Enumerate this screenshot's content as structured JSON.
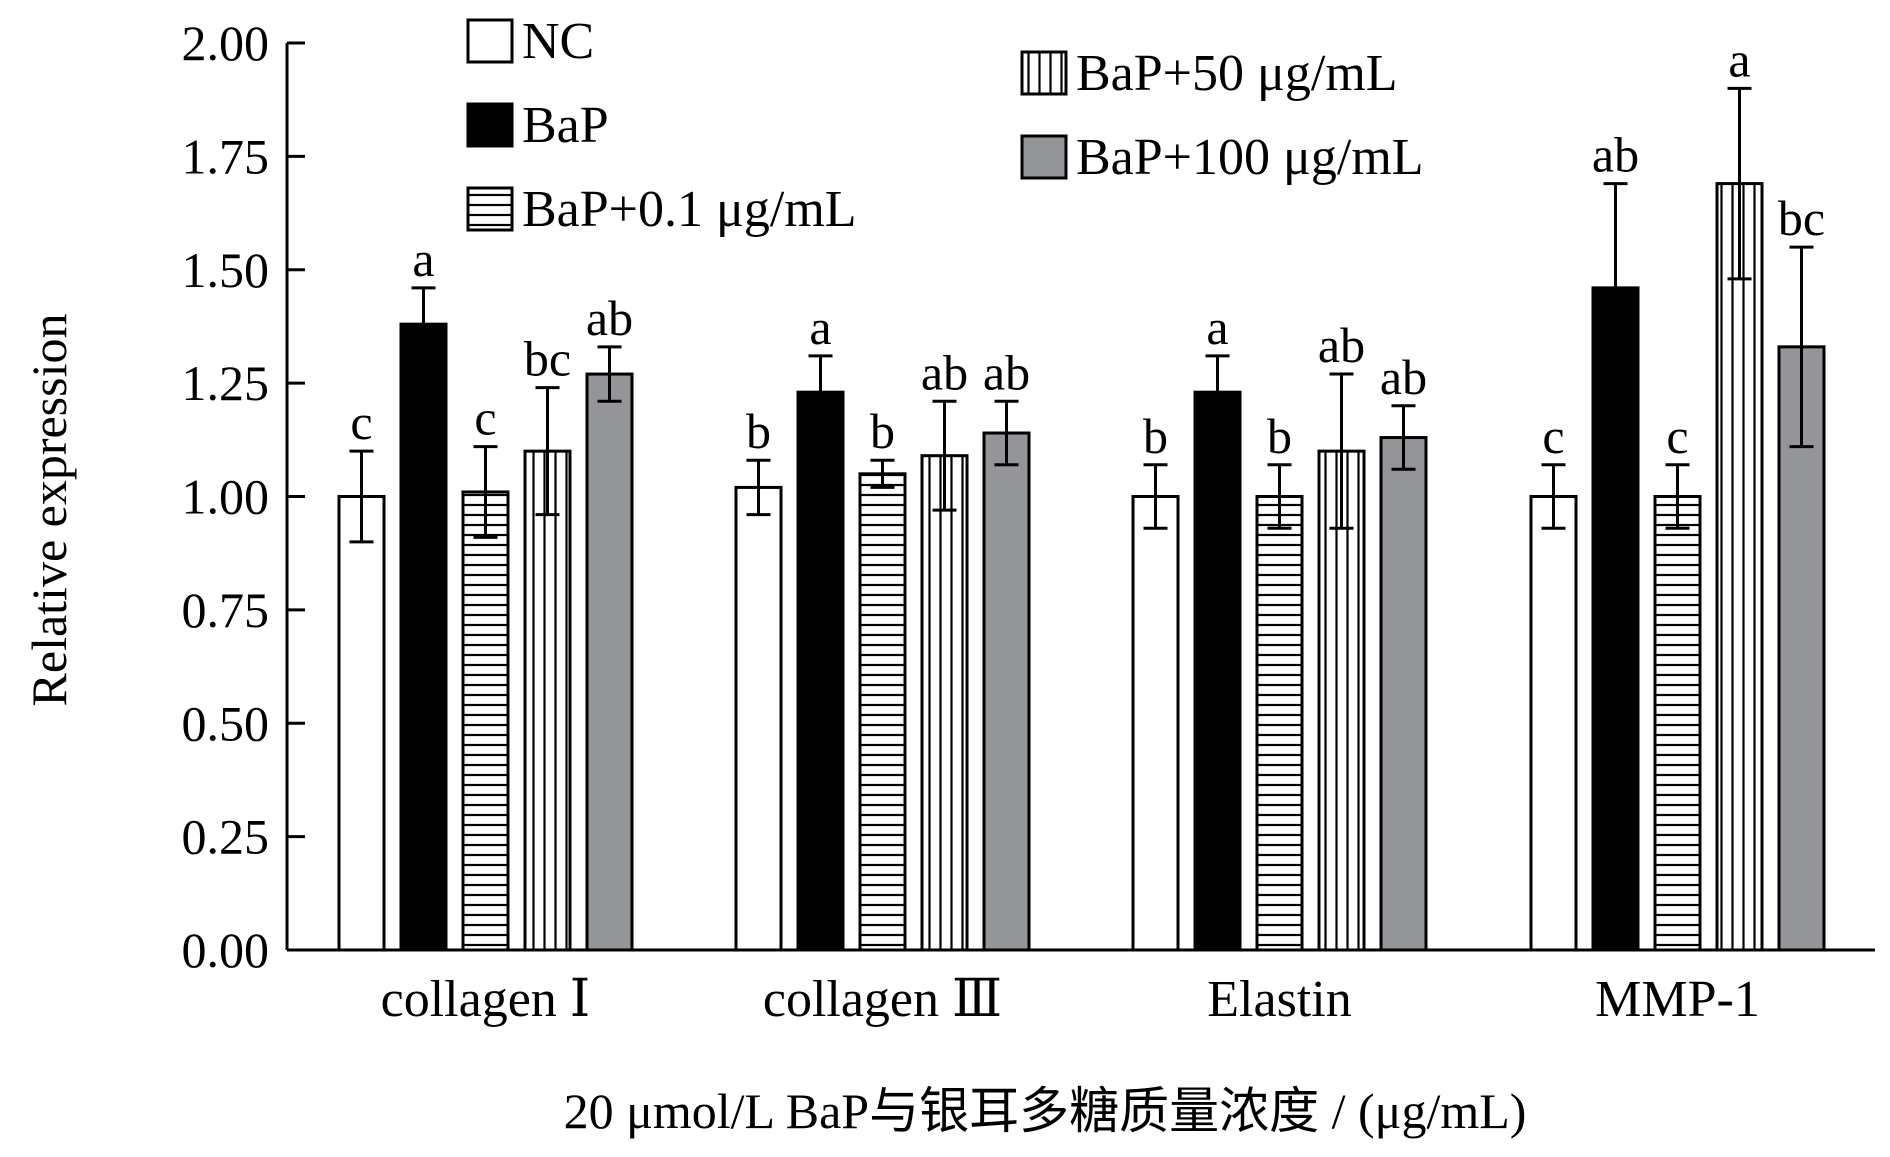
{
  "chart_data": {
    "type": "bar",
    "title": "",
    "xlabel": "20 μmol/L BaP与银耳多糖质量浓度 / (μg/mL)",
    "ylabel": "Relative expression",
    "ylim": [
      0,
      2.0
    ],
    "yticks": [
      "0.00",
      "0.25",
      "0.50",
      "0.75",
      "1.00",
      "1.25",
      "1.50",
      "1.75",
      "2.00"
    ],
    "categories": [
      "collagen Ⅰ",
      "collagen Ⅲ",
      "Elastin",
      "MMP-1"
    ],
    "series": [
      {
        "name": "NC",
        "pattern": "white",
        "values": [
          1.0,
          1.02,
          1.0,
          1.0
        ],
        "errors": [
          0.1,
          0.06,
          0.07,
          0.07
        ],
        "letters": [
          "c",
          "b",
          "b",
          "c"
        ]
      },
      {
        "name": "BaP",
        "pattern": "black",
        "values": [
          1.38,
          1.23,
          1.23,
          1.46
        ],
        "errors": [
          0.08,
          0.08,
          0.08,
          0.23
        ],
        "letters": [
          "a",
          "a",
          "a",
          "ab"
        ]
      },
      {
        "name": "BaP+0.1 μg/mL",
        "pattern": "hlines",
        "values": [
          1.01,
          1.05,
          1.0,
          1.0
        ],
        "errors": [
          0.1,
          0.03,
          0.07,
          0.07
        ],
        "letters": [
          "c",
          "b",
          "b",
          "c"
        ]
      },
      {
        "name": "BaP+50 μg/mL",
        "pattern": "vlines",
        "values": [
          1.1,
          1.09,
          1.1,
          1.69
        ],
        "errors": [
          0.14,
          0.12,
          0.17,
          0.21
        ],
        "letters": [
          "bc",
          "ab",
          "ab",
          "a"
        ]
      },
      {
        "name": "BaP+100 μg/mL",
        "pattern": "gray",
        "values": [
          1.27,
          1.14,
          1.13,
          1.33
        ],
        "errors": [
          0.06,
          0.07,
          0.07,
          0.22
        ],
        "letters": [
          "ab",
          "ab",
          "ab",
          "bc"
        ]
      }
    ],
    "legend_position": "top",
    "grid": false,
    "colors": {
      "gray": "#939598",
      "black": "#000000",
      "white": "#ffffff"
    }
  }
}
